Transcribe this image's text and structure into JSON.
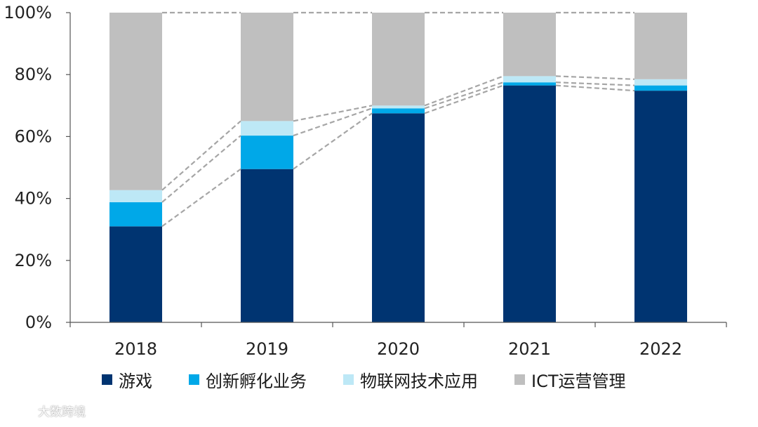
{
  "chart_data": {
    "type": "stacked-bar",
    "categories": [
      "2018",
      "2019",
      "2020",
      "2021",
      "2022"
    ],
    "series": [
      {
        "name": "游戏",
        "color": "#003471",
        "values": [
          31.0,
          49.5,
          67.5,
          76.5,
          74.8
        ]
      },
      {
        "name": "创新孵化业务",
        "color": "#00a8e8",
        "values": [
          7.8,
          10.8,
          1.6,
          1.0,
          1.7
        ]
      },
      {
        "name": "物联网技术应用",
        "color": "#bde8f6",
        "values": [
          3.9,
          4.7,
          0.9,
          2.0,
          2.0
        ]
      },
      {
        "name": "ICT运营管理",
        "color": "#bfbfbf",
        "values": [
          57.3,
          35.0,
          30.0,
          20.5,
          21.5
        ]
      }
    ],
    "yticks": [
      "0%",
      "20%",
      "40%",
      "60%",
      "80%",
      "100%"
    ],
    "ylim": [
      0,
      100
    ],
    "connector_lines": "dashed"
  },
  "watermark": {
    "text": "大数跨境"
  }
}
